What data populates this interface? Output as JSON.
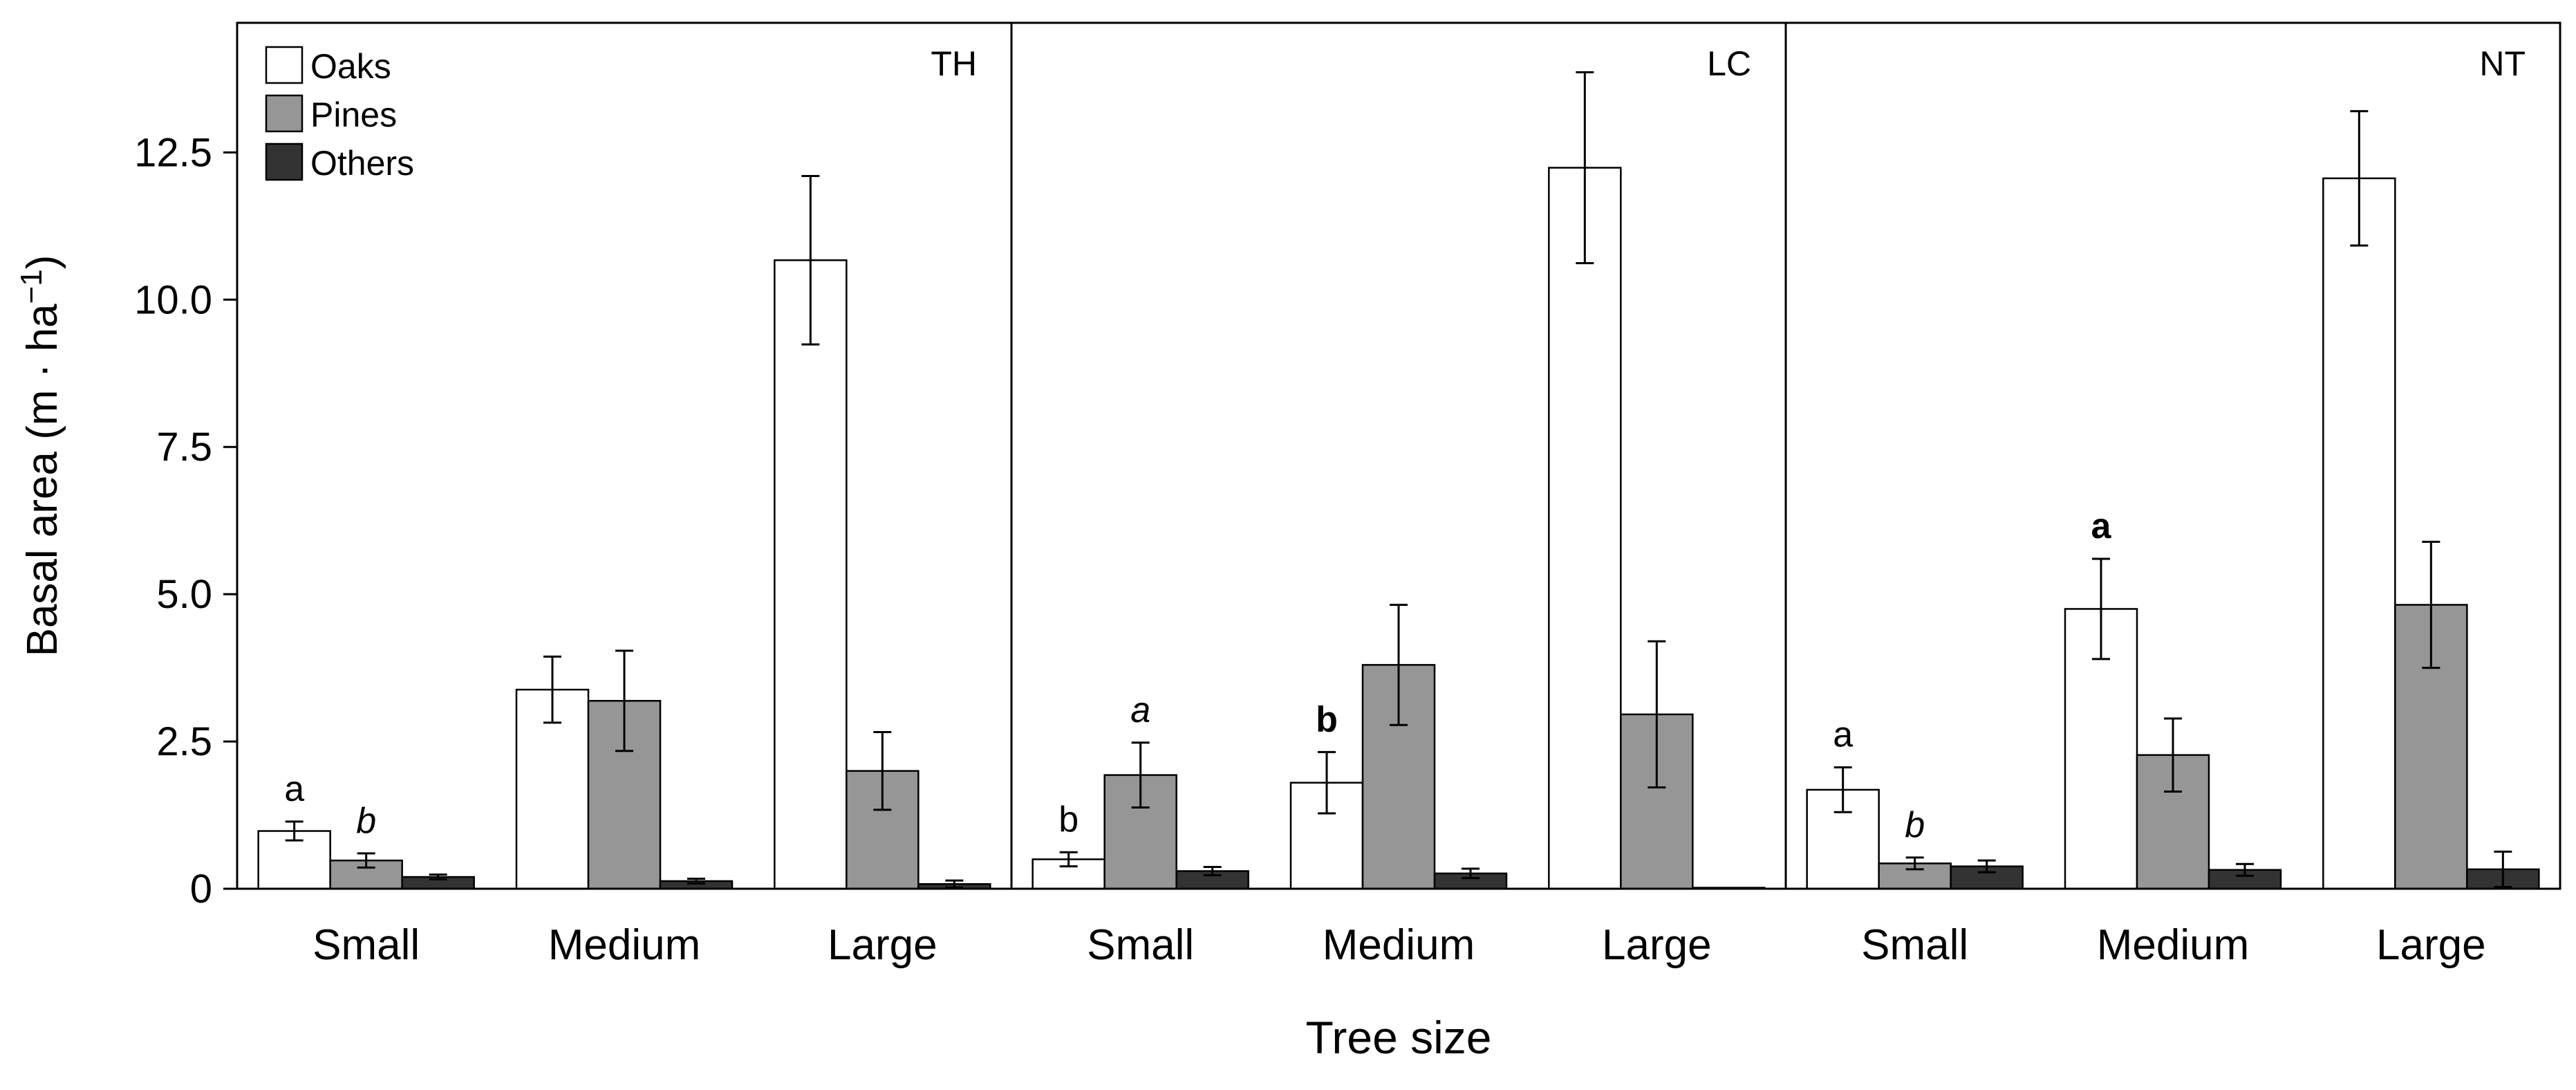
{
  "chart_data": {
    "type": "bar",
    "xlabel": "Tree size",
    "ylabel": "Basal area (m · ha",
    "ylabel_sup": "−1",
    "ylabel_close": ")",
    "ylim": [
      0,
      14.7
    ],
    "yticks": [
      0,
      2.5,
      5.0,
      7.5,
      10.0,
      12.5
    ],
    "ytick_labels": [
      "0",
      "2.5",
      "5.0",
      "7.5",
      "10.0",
      "12.5"
    ],
    "categories": [
      "Small",
      "Medium",
      "Large"
    ],
    "legend": {
      "position": "top-left",
      "entries": [
        {
          "name": "Oaks",
          "color": "#ffffff"
        },
        {
          "name": "Pines",
          "color": "#969696"
        },
        {
          "name": "Others",
          "color": "#333333"
        }
      ]
    },
    "panels": [
      {
        "name": "TH",
        "series": [
          {
            "name": "Oaks",
            "values": [
              0.98,
              3.38,
              10.67
            ],
            "errors": [
              0.16,
              0.56,
              1.43
            ]
          },
          {
            "name": "Pines",
            "values": [
              0.48,
              3.19,
              2.0
            ],
            "errors": [
              0.12,
              0.85,
              0.66
            ]
          },
          {
            "name": "Others",
            "values": [
              0.2,
              0.13,
              0.08
            ],
            "errors": [
              0.04,
              0.04,
              0.06
            ]
          }
        ],
        "annotations": [
          {
            "text": "a",
            "category": 0,
            "series": 0,
            "style": "normal"
          },
          {
            "text": "b",
            "category": 0,
            "series": 1,
            "style": "italic"
          }
        ]
      },
      {
        "name": "LC",
        "series": [
          {
            "name": "Oaks",
            "values": [
              0.5,
              1.8,
              12.24
            ],
            "errors": [
              0.12,
              0.52,
              1.62
            ]
          },
          {
            "name": "Pines",
            "values": [
              1.93,
              3.8,
              2.96
            ],
            "errors": [
              0.55,
              1.02,
              1.24
            ]
          },
          {
            "name": "Others",
            "values": [
              0.3,
              0.26,
              0.0
            ],
            "errors": [
              0.07,
              0.08,
              0.0
            ]
          }
        ],
        "annotations": [
          {
            "text": "b",
            "category": 0,
            "series": 0,
            "style": "normal"
          },
          {
            "text": "a",
            "category": 0,
            "series": 1,
            "style": "italic"
          },
          {
            "text": "b",
            "category": 1,
            "series": 0,
            "style": "bold"
          }
        ]
      },
      {
        "name": "NT",
        "series": [
          {
            "name": "Oaks",
            "values": [
              1.68,
              4.75,
              12.06
            ],
            "errors": [
              0.38,
              0.85,
              1.14
            ]
          },
          {
            "name": "Pines",
            "values": [
              0.43,
              2.27,
              4.82
            ],
            "errors": [
              0.1,
              0.62,
              1.07
            ]
          },
          {
            "name": "Others",
            "values": [
              0.38,
              0.32,
              0.33
            ],
            "errors": [
              0.1,
              0.1,
              0.3
            ]
          }
        ],
        "annotations": [
          {
            "text": "a",
            "category": 0,
            "series": 0,
            "style": "normal"
          },
          {
            "text": "b",
            "category": 0,
            "series": 1,
            "style": "italic"
          },
          {
            "text": "a",
            "category": 1,
            "series": 0,
            "style": "bold"
          }
        ]
      }
    ]
  }
}
